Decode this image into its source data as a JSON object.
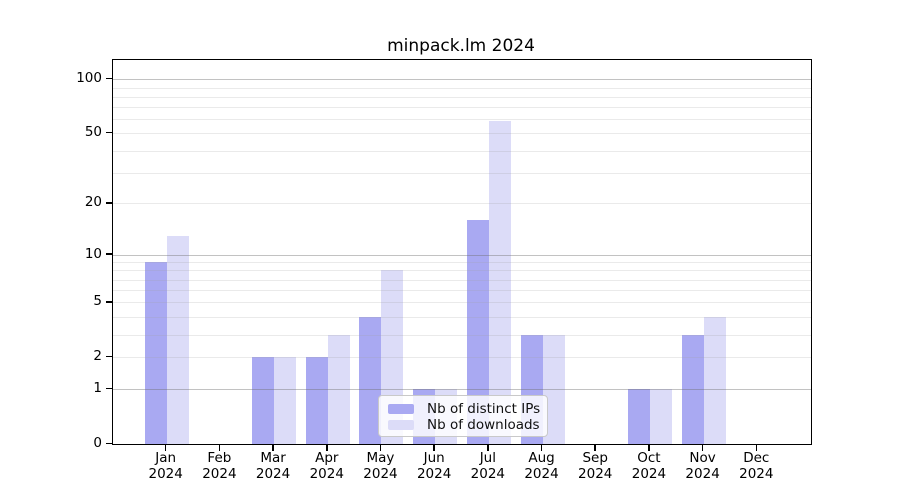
{
  "title": "minpack.lm 2024",
  "chart_data": {
    "type": "bar",
    "title": "minpack.lm 2024",
    "categories": [
      {
        "month": "Jan",
        "year": "2024"
      },
      {
        "month": "Feb",
        "year": "2024"
      },
      {
        "month": "Mar",
        "year": "2024"
      },
      {
        "month": "Apr",
        "year": "2024"
      },
      {
        "month": "May",
        "year": "2024"
      },
      {
        "month": "Jun",
        "year": "2024"
      },
      {
        "month": "Jul",
        "year": "2024"
      },
      {
        "month": "Aug",
        "year": "2024"
      },
      {
        "month": "Sep",
        "year": "2024"
      },
      {
        "month": "Oct",
        "year": "2024"
      },
      {
        "month": "Nov",
        "year": "2024"
      },
      {
        "month": "Dec",
        "year": "2024"
      }
    ],
    "series": [
      {
        "name": "Nb of distinct IPs",
        "color": "#a9a9f2",
        "values": [
          9,
          0,
          2,
          2,
          4,
          1,
          16,
          3,
          0,
          1,
          3,
          0
        ]
      },
      {
        "name": "Nb of downloads",
        "color": "#dcdcf8",
        "values": [
          13,
          0,
          2,
          3,
          8,
          1,
          59,
          3,
          0,
          1,
          4,
          0
        ]
      }
    ],
    "yscale": "log1p",
    "ylim": [
      0,
      128
    ],
    "yticks": [
      0,
      1,
      2,
      5,
      10,
      20,
      50,
      100
    ],
    "ygrid_major": [
      1,
      10,
      100
    ],
    "ygrid_minor": [
      2,
      3,
      4,
      5,
      6,
      7,
      8,
      9,
      20,
      30,
      40,
      50,
      60,
      70,
      80,
      90
    ],
    "xlabel": "",
    "ylabel": "",
    "legend_position": "lower center inside",
    "grid": "horizontal"
  }
}
